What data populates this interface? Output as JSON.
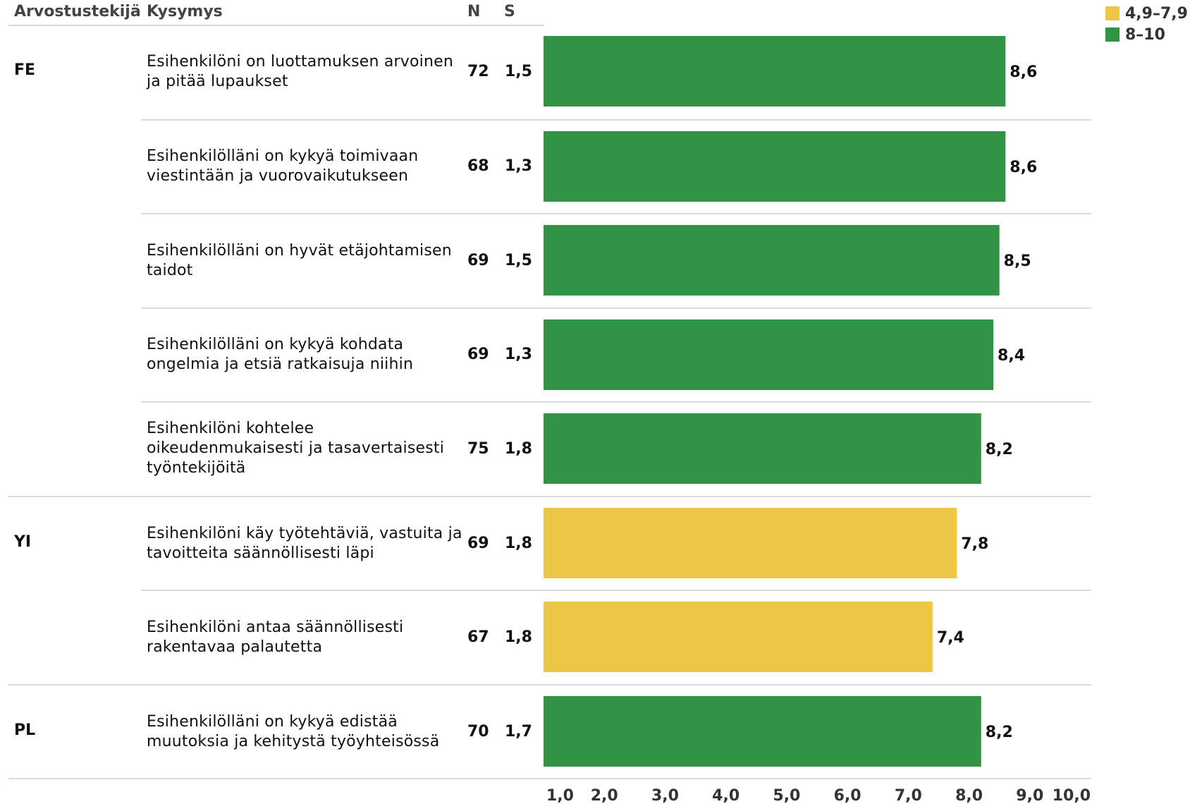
{
  "headers": {
    "rater": "Arvostustekijä",
    "question": "Kysymys",
    "n": "N",
    "s": "S"
  },
  "legend": [
    {
      "label": "4,9–7,9",
      "color": "#ecc846"
    },
    {
      "label": "8–10",
      "color": "#319444"
    }
  ],
  "rows": [
    {
      "group": "FE",
      "question": "Esihenkilöni on luottamuksen arvoinen ja pitää lupaukset",
      "n": "72",
      "s": "1,5",
      "value_label": "8,6"
    },
    {
      "group": "",
      "question": "Esihenkilölläni on kykyä toimivaan viestintään ja vuorovaikutukseen",
      "n": "68",
      "s": "1,3",
      "value_label": "8,6"
    },
    {
      "group": "",
      "question": "Esihenkilölläni on hyvät etäjohtamisen taidot",
      "n": "69",
      "s": "1,5",
      "value_label": "8,5"
    },
    {
      "group": "",
      "question": "Esihenkilölläni on kykyä kohdata ongelmia ja etsiä ratkaisuja niihin",
      "n": "69",
      "s": "1,3",
      "value_label": "8,4"
    },
    {
      "group": "",
      "question": "Esihenkilöni kohtelee oikeudenmukaisesti ja tasavertaisesti työntekijöitä",
      "n": "75",
      "s": "1,8",
      "value_label": "8,2"
    },
    {
      "group": "YI",
      "question": "Esihenkilöni käy työtehtäviä, vastuita ja tavoitteita säännöllisesti läpi",
      "n": "69",
      "s": "1,8",
      "value_label": "7,8"
    },
    {
      "group": "",
      "question": "Esihenkilöni antaa säännöllisesti rakentavaa palautetta",
      "n": "67",
      "s": "1,8",
      "value_label": "7,4"
    },
    {
      "group": "PL",
      "question": "Esihenkilölläni on kykyä edistää muutoksia ja kehitystä työyhteisössä",
      "n": "70",
      "s": "1,7",
      "value_label": "8,2"
    }
  ],
  "chart_data": {
    "type": "bar",
    "orientation": "horizontal",
    "categories": [
      "Esihenkilöni on luottamuksen arvoinen ja pitää lupaukset",
      "Esihenkilölläni on kykyä toimivaan viestintään ja vuorovaikutukseen",
      "Esihenkilölläni on hyvät etäjohtamisen taidot",
      "Esihenkilölläni on kykyä kohdata ongelmia ja etsiä ratkaisuja niihin",
      "Esihenkilöni kohtelee oikeudenmukaisesti ja tasavertaisesti työntekijöitä",
      "Esihenkilöni käy työtehtäviä, vastuita ja tavoitteita säännöllisesti läpi",
      "Esihenkilöni antaa säännöllisesti rakentavaa palautetta",
      "Esihenkilölläni on kykyä edistää muutoksia ja kehitystä työyhteisössä"
    ],
    "values": [
      8.6,
      8.6,
      8.5,
      8.4,
      8.2,
      7.8,
      7.4,
      8.2
    ],
    "bar_color_bands": [
      "8-10",
      "8-10",
      "8-10",
      "8-10",
      "8-10",
      "4,9-7,9",
      "4,9-7,9",
      "8-10"
    ],
    "xlim": [
      1.0,
      10.0
    ],
    "x_ticks": [
      "1,0",
      "2,0",
      "3,0",
      "4,0",
      "5,0",
      "6,0",
      "7,0",
      "8,0",
      "9,0",
      "10,0"
    ],
    "x_tick_values": [
      1,
      2,
      3,
      4,
      5,
      6,
      7,
      8,
      9,
      10
    ],
    "grid": false,
    "legend_position": "top-right"
  }
}
